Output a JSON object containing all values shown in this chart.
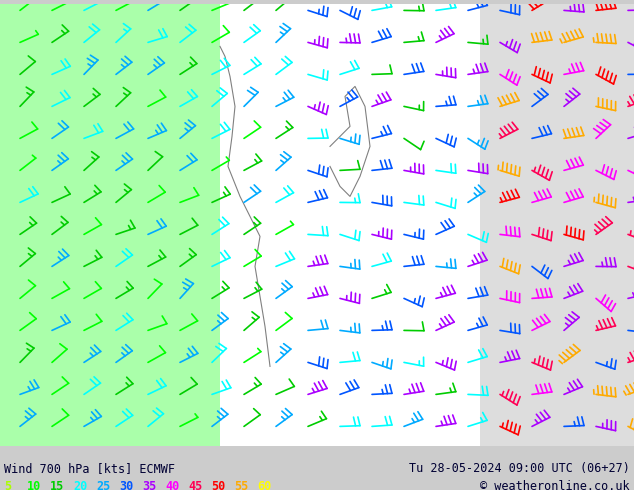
{
  "title_left": "Wind 700 hPa [kts] ECMWF",
  "title_right": "Tu 28-05-2024 09:00 UTC (06+27)",
  "copyright": "© weatheronline.co.uk",
  "legend_values": [
    5,
    10,
    15,
    20,
    25,
    30,
    35,
    40,
    45,
    50,
    55,
    60
  ],
  "legend_colors": [
    "#aaff00",
    "#00ff00",
    "#00cc00",
    "#00ffff",
    "#00aaff",
    "#0055ff",
    "#aa00ff",
    "#ff00ff",
    "#ff0055",
    "#ff0000",
    "#ffaa00",
    "#ffff00"
  ],
  "bg_color_land_west": "#aaffaa",
  "bg_color_land_east": "#dddddd",
  "bg_color_sea": "#ffffff",
  "font_color": "#000000",
  "title_font_color": "#000033",
  "figsize": [
    6.34,
    4.9
  ],
  "dpi": 100,
  "wind_speed_colors": {
    "5": "#aaff00",
    "10": "#00ff00",
    "15": "#00cc00",
    "20": "#00ffff",
    "25": "#00aaff",
    "30": "#0055ff",
    "35": "#aa00ff",
    "40": "#ff00ff",
    "45": "#ff0055",
    "50": "#ff0000",
    "55": "#ffaa00",
    "60": "#ffff00"
  }
}
